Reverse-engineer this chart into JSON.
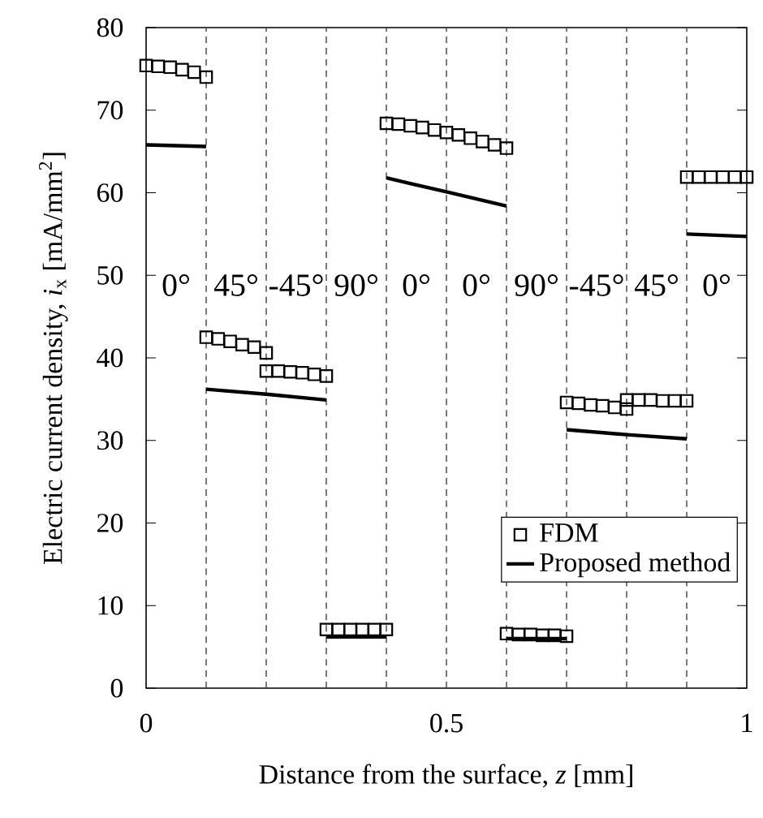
{
  "chart_data": {
    "type": "scatter",
    "xlabel": "Distance from the surface, *z* [mm]",
    "ylabel": "Electric current density, *i*$_{x}$ [mA/mm$^{2}$]",
    "xlim": [
      0,
      1
    ],
    "ylim": [
      0,
      80
    ],
    "xticks": [
      0,
      0.5,
      1
    ],
    "yticks": [
      0,
      10,
      20,
      30,
      40,
      50,
      60,
      70,
      80
    ],
    "legend": "bottom right",
    "series": [
      {
        "name": "FDM",
        "marker": "square",
        "color": "#000000",
        "x": [
          0,
          0.02,
          0.04,
          0.06,
          0.08,
          0.1,
          0.1,
          0.12,
          0.14,
          0.16,
          0.18,
          0.2,
          0.2,
          0.22,
          0.24,
          0.26,
          0.28,
          0.3,
          0.3,
          0.32,
          0.34,
          0.36,
          0.38,
          0.4,
          0.4,
          0.42,
          0.44,
          0.46,
          0.48,
          0.5,
          0.52,
          0.54,
          0.56,
          0.58,
          0.6,
          0.6,
          0.62,
          0.64,
          0.66,
          0.68,
          0.7,
          0.7,
          0.72,
          0.74,
          0.76,
          0.78,
          0.8,
          0.8,
          0.82,
          0.84,
          0.86,
          0.88,
          0.9,
          0.9,
          0.92,
          0.94,
          0.96,
          0.98,
          1.0
        ],
        "values": [
          75.4,
          75.3,
          75.2,
          74.9,
          74.6,
          74.0,
          42.5,
          42.3,
          42.0,
          41.6,
          41.3,
          40.6,
          38.4,
          38.4,
          38.3,
          38.2,
          38.0,
          37.8,
          7.1,
          7.1,
          7.1,
          7.1,
          7.1,
          7.1,
          68.4,
          68.3,
          68.1,
          67.9,
          67.6,
          67.3,
          67.0,
          66.6,
          66.2,
          65.8,
          65.4,
          6.6,
          6.5,
          6.5,
          6.4,
          6.4,
          6.3,
          34.6,
          34.5,
          34.3,
          34.2,
          34.0,
          33.8,
          34.9,
          34.9,
          34.9,
          34.8,
          34.8,
          34.8,
          61.9,
          61.9,
          61.9,
          61.9,
          61.9,
          61.9
        ]
      },
      {
        "name": "Proposed method",
        "type": "line",
        "marker": "none",
        "line_style": "solid",
        "color": "#000000",
        "x": [
          0,
          0.1,
          null,
          0.1,
          0.2,
          0.3,
          null,
          0.3,
          0.4,
          null,
          0.4,
          0.5,
          0.6,
          null,
          0.6,
          0.7,
          null,
          0.7,
          0.8,
          0.9,
          null,
          0.9,
          1.0
        ],
        "values": [
          65.8,
          65.6,
          null,
          36.2,
          35.6,
          34.9,
          null,
          6.2,
          6.2,
          null,
          61.8,
          60.1,
          58.4,
          null,
          6.0,
          6.0,
          null,
          31.3,
          30.7,
          30.2,
          null,
          55.0,
          54.7
        ]
      }
    ],
    "ref_lines": [
      {
        "axis": "x",
        "value": 0.1,
        "color": "#404040",
        "line_style": "dashed"
      },
      {
        "axis": "x",
        "value": 0.2,
        "color": "#404040",
        "line_style": "dashed"
      },
      {
        "axis": "x",
        "value": 0.3,
        "color": "#404040",
        "line_style": "dashed"
      },
      {
        "axis": "x",
        "value": 0.4,
        "color": "#404040",
        "line_style": "dashed"
      },
      {
        "axis": "x",
        "value": 0.5,
        "color": "#404040",
        "line_style": "dashed"
      },
      {
        "axis": "x",
        "value": 0.6,
        "color": "#404040",
        "line_style": "dashed"
      },
      {
        "axis": "x",
        "value": 0.7,
        "color": "#404040",
        "line_style": "dashed"
      },
      {
        "axis": "x",
        "value": 0.8,
        "color": "#404040",
        "line_style": "dashed"
      },
      {
        "axis": "x",
        "value": 0.9,
        "color": "#404040",
        "line_style": "dashed"
      }
    ],
    "annotations": [
      "0°",
      "45°",
      "-45°",
      "90°",
      "0°",
      "0°",
      "90°",
      "-45°",
      "45°",
      "0°"
    ]
  }
}
